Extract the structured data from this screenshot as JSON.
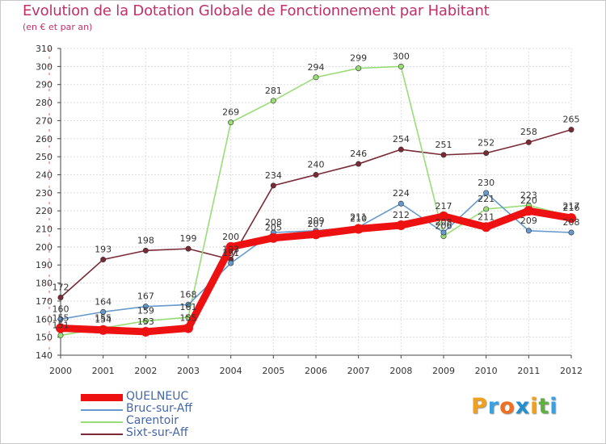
{
  "header": {
    "title": "Evolution de la Dotation Globale de Fonctionnement par Habitant",
    "subtitle": "(en € et par an)"
  },
  "logo": {
    "letters": [
      "P",
      "r",
      "o",
      "x",
      "i",
      "t",
      "i"
    ],
    "colors": [
      "#f0a020",
      "#3aa0e0",
      "#f07020",
      "#2090d0",
      "#f0a020",
      "#60b040",
      "#3aa0e0"
    ]
  },
  "chart_data": {
    "type": "line",
    "title": "Evolution de la Dotation Globale de Fonctionnement par Habitant",
    "subtitle": "(en € et par an)",
    "xlabel": "",
    "ylabel": "",
    "categories": [
      "2000",
      "2001",
      "2002",
      "2003",
      "2004",
      "2005",
      "2006",
      "2007",
      "2008",
      "2009",
      "2010",
      "2011",
      "2012"
    ],
    "ylim": [
      140,
      310
    ],
    "yticks": [
      140,
      150,
      160,
      170,
      180,
      190,
      200,
      210,
      220,
      230,
      240,
      250,
      260,
      270,
      280,
      290,
      300,
      310
    ],
    "series": [
      {
        "name": "Sixt-sur-Aff",
        "color": "#7a2a35",
        "values": [
          172,
          193,
          198,
          199,
          193,
          234,
          240,
          246,
          254,
          251,
          252,
          258,
          265
        ],
        "labels": [
          "172",
          "193",
          "198",
          "199",
          "193",
          "234",
          "240",
          "246",
          "254",
          "251",
          "252",
          "258",
          "265"
        ]
      },
      {
        "name": "Carentoir",
        "color": "#99dd77",
        "values": [
          151,
          155,
          159,
          161,
          269,
          281,
          294,
          299,
          300,
          206,
          221,
          223,
          217
        ],
        "labels": [
          "151",
          "155",
          "159",
          "161",
          "269",
          "281",
          "294",
          "299",
          "300",
          "206",
          "221",
          "223",
          "217"
        ]
      },
      {
        "name": "Bruc-sur-Aff",
        "color": "#6699cc",
        "values": [
          160,
          164,
          167,
          168,
          191,
          208,
          209,
          211,
          224,
          208,
          230,
          209,
          208
        ],
        "labels": [
          "160",
          "164",
          "167",
          "168",
          "191",
          "208",
          "209",
          "211",
          "224",
          "208",
          "230",
          "209",
          "208"
        ]
      },
      {
        "name": "QUELNEUC",
        "color": "#ee1111",
        "values": [
          155,
          154,
          153,
          155,
          200,
          205,
          207,
          210,
          212,
          217,
          211,
          220,
          216
        ],
        "labels": [
          "155",
          "154",
          "153",
          "155",
          "200",
          "205",
          "207",
          "210",
          "212",
          "217",
          "211",
          "220",
          "216"
        ]
      }
    ],
    "legend": [
      {
        "name": "QUELNEUC",
        "color": "#ee1111"
      },
      {
        "name": "Bruc-sur-Aff",
        "color": "#6699cc"
      },
      {
        "name": "Carentoir",
        "color": "#99dd77"
      },
      {
        "name": "Sixt-sur-Aff",
        "color": "#7a2a35"
      }
    ]
  }
}
